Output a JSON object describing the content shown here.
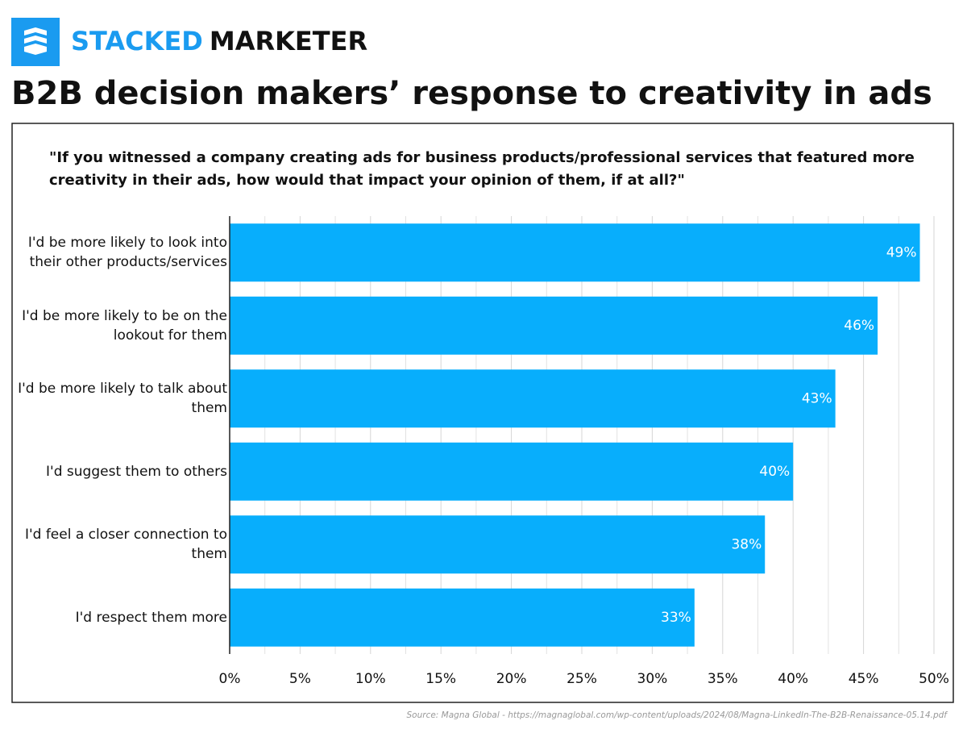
{
  "brand": {
    "part1": "STACKED",
    "part2": "MARKETER"
  },
  "chart_data": {
    "type": "bar",
    "orientation": "horizontal",
    "title": "B2B decision makers’ response to creativity in ads",
    "subtitle": "\"If you witnessed a company creating ads for business products/professional services that featured more creativity in their ads, how would that impact your opinion of them, if at all?\"",
    "categories": [
      "I'd be more likely to look into their other products/services",
      "I'd be more likely to be on the lookout for them",
      "I'd be more likely to talk about them",
      "I'd suggest them to others",
      "I'd feel a closer connection to them",
      "I'd respect them more"
    ],
    "values": [
      49,
      46,
      43,
      40,
      38,
      33
    ],
    "value_labels": [
      "49%",
      "46%",
      "43%",
      "40%",
      "38%",
      "33%"
    ],
    "color": "#08aefc",
    "xlim": [
      0,
      50
    ],
    "xticks": [
      {
        "value": 0,
        "label": "0%"
      },
      {
        "value": 5,
        "label": "5%"
      },
      {
        "value": 10,
        "label": "10%"
      },
      {
        "value": 15,
        "label": "15%"
      },
      {
        "value": 20,
        "label": "20%"
      },
      {
        "value": 25,
        "label": "25%"
      },
      {
        "value": 30,
        "label": "30%"
      },
      {
        "value": 35,
        "label": "35%"
      },
      {
        "value": 40,
        "label": "40%"
      },
      {
        "value": 45,
        "label": "45%"
      },
      {
        "value": 50,
        "label": "50%"
      }
    ],
    "xminorticks": [
      2.5,
      7.5,
      12.5,
      17.5,
      22.5,
      27.5,
      32.5,
      37.5,
      42.5,
      47.5
    ],
    "grid": true,
    "source": "Source: Magna Global - https://magnaglobal.com/wp-content/uploads/2024/08/Magna-LinkedIn-The-B2B-Renaissance-05.14.pdf"
  }
}
